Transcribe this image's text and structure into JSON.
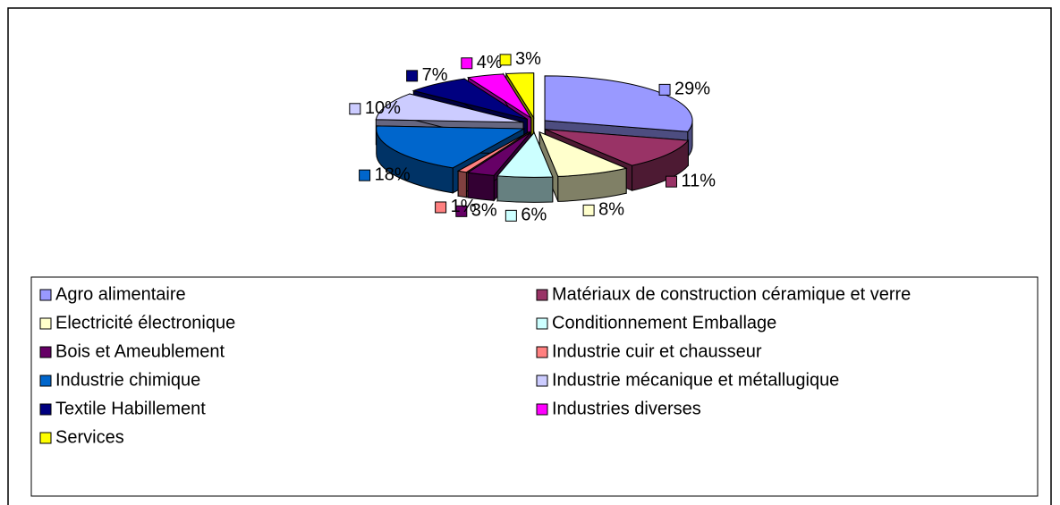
{
  "chart_data": {
    "type": "pie",
    "categories": [
      "Agro alimentaire",
      "Matériaux de construction céramique et verre",
      "Electricité électronique",
      "Conditionnement Emballage",
      "Bois et Ameublement",
      "Industrie cuir et chausseur",
      "Industrie chimique",
      "Industrie mécanique et métallugique",
      "Textile Habillement",
      "Industries diverses",
      "Services"
    ],
    "values": [
      29,
      11,
      8,
      6,
      3,
      1,
      18,
      10,
      7,
      4,
      3
    ],
    "value_labels": [
      "29%",
      "11%",
      "8%",
      "6%",
      "3%",
      "1%",
      "18%",
      "10%",
      "7%",
      "4%",
      "3%"
    ],
    "colors": [
      "#9999ff",
      "#993366",
      "#ffffcc",
      "#ccffff",
      "#660066",
      "#ff8080",
      "#0066cc",
      "#ccccff",
      "#000080",
      "#ff00ff",
      "#ffff00"
    ],
    "legend": "bottom"
  }
}
